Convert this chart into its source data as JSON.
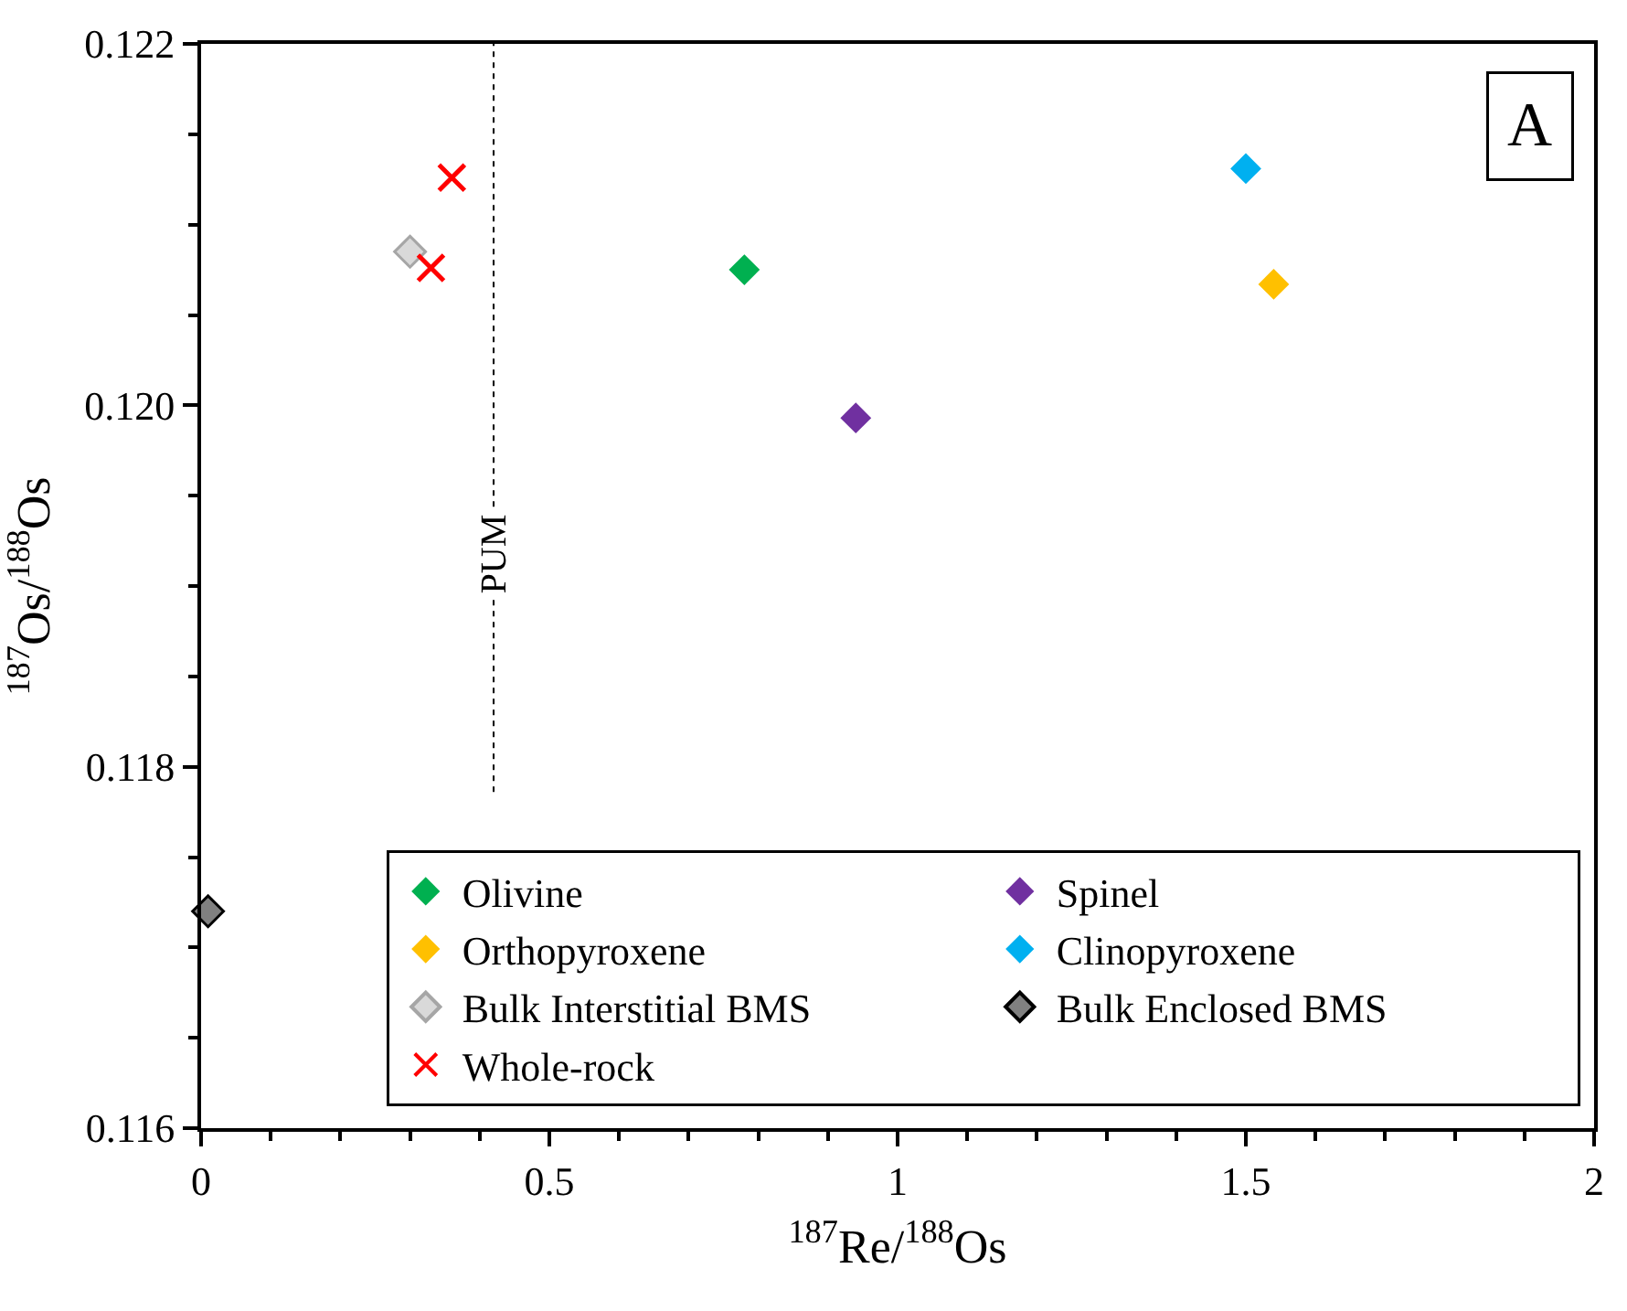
{
  "chart_data": {
    "type": "scatter",
    "xlabel": "$^{187}$Re/$^{188}$Os",
    "ylabel": "$^{187}$Os/$^{188}$Os",
    "xlim": [
      0,
      2
    ],
    "xticks": [
      0,
      0.5,
      1,
      1.5,
      2
    ],
    "ylim": [
      0.116,
      0.122
    ],
    "yticks": [
      {
        "value": 0.116,
        "label": "0.116"
      },
      {
        "value": 0.118,
        "label": "0.118"
      },
      {
        "value": 0.12,
        "label": "0.120"
      },
      {
        "value": 0.122,
        "label": "0.122"
      }
    ],
    "grid": false,
    "legend": "bottom right",
    "series": [
      {
        "name": "Olivine",
        "color": "#00b050",
        "marker": "diamond",
        "x": [
          0.78
        ],
        "values": [
          0.12075
        ]
      },
      {
        "name": "Spinel",
        "color": "#7030a0",
        "marker": "diamond",
        "x": [
          0.94
        ],
        "values": [
          0.11993
        ]
      },
      {
        "name": "Orthopyroxene",
        "color": "#ffc000",
        "marker": "diamond",
        "x": [
          1.54
        ],
        "values": [
          0.12067
        ]
      },
      {
        "name": "Clinopyroxene",
        "color": "#00b0f0",
        "marker": "diamond",
        "x": [
          1.5
        ],
        "values": [
          0.12131
        ]
      },
      {
        "name": "Bulk Interstitial BMS",
        "color": "#d9d9d9",
        "marker": "diamond",
        "x": [
          0.3
        ],
        "values": [
          0.12085
        ]
      },
      {
        "name": "Bulk Enclosed BMS",
        "color": "#808080",
        "marker": "diamond",
        "x": [
          0.01
        ],
        "values": [
          0.1172
        ]
      },
      {
        "name": "Whole-rock",
        "color": "#ff0000",
        "marker": "cross",
        "x": [
          0.36,
          0.33
        ],
        "values": [
          0.12126,
          0.12076
        ]
      }
    ],
    "ref_lines": [
      {
        "axis": "x",
        "value": 0.42,
        "label": "PUM",
        "line_style": "dotted",
        "color": "#000000"
      }
    ],
    "annotations": [
      "A"
    ]
  }
}
